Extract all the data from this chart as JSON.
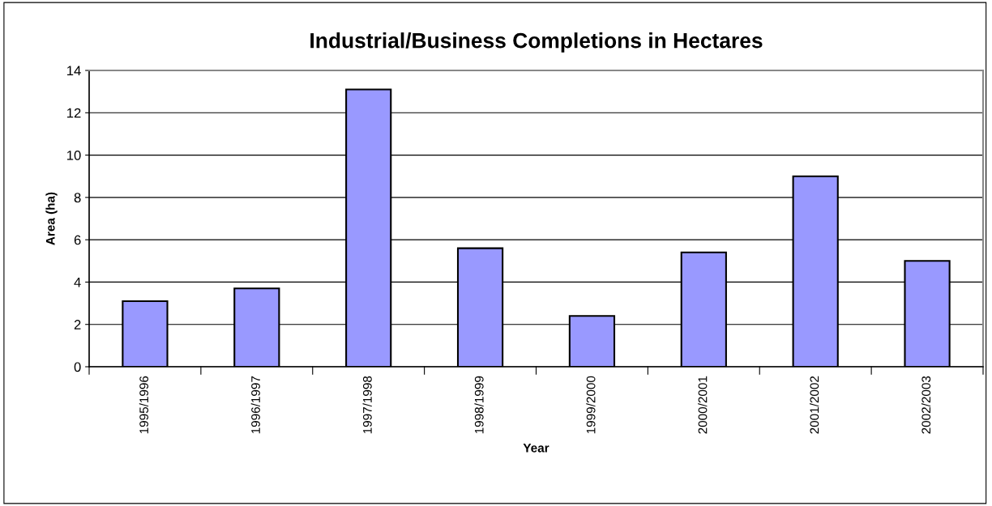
{
  "chart_data": {
    "type": "bar",
    "title": "Industrial/Business Completions in Hectares",
    "xlabel": "Year",
    "ylabel": "Area (ha)",
    "categories": [
      "1995/1996",
      "1996/1997",
      "1997/1998",
      "1998/1999",
      "1999/2000",
      "2000/2001",
      "2001/2002",
      "2002/2003"
    ],
    "values": [
      3.1,
      3.7,
      13.1,
      5.6,
      2.4,
      5.4,
      9.0,
      5.0
    ],
    "color": "#9999ff",
    "ylim": [
      0,
      14
    ],
    "yticks": [
      0,
      2,
      4,
      6,
      8,
      10,
      12,
      14
    ],
    "grid": "y"
  }
}
